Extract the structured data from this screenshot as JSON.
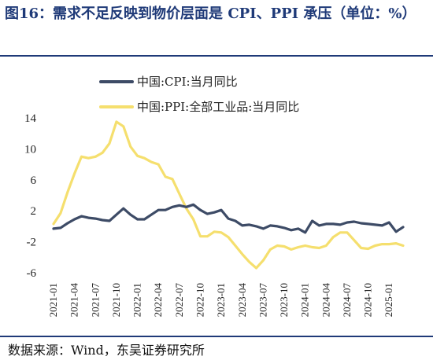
{
  "title": "图16：需求不足反映到物价层面是 CPI、PPI 承压（单位：%）",
  "source": "数据来源：Wind，东吴证券研究所",
  "colors": {
    "cpi": "#3d4b66",
    "ppi": "#f5df6e",
    "title": "#1f3a78"
  },
  "chart_data": {
    "type": "line",
    "title": "图16：需求不足反映到物价层面是 CPI、PPI 承压（单位：%）",
    "xlabel": "",
    "ylabel": "",
    "ylim": [
      -6,
      14
    ],
    "yticks": [
      -6,
      -2,
      2,
      6,
      10,
      14
    ],
    "grid": false,
    "legend_position": "top-center",
    "x": [
      "2021-01",
      "2021-02",
      "2021-03",
      "2021-04",
      "2021-05",
      "2021-06",
      "2021-07",
      "2021-08",
      "2021-09",
      "2021-10",
      "2021-11",
      "2021-12",
      "2022-01",
      "2022-02",
      "2022-03",
      "2022-04",
      "2022-05",
      "2022-06",
      "2022-07",
      "2022-08",
      "2022-09",
      "2022-10",
      "2022-11",
      "2022-12",
      "2023-01",
      "2023-02",
      "2023-03",
      "2023-04",
      "2023-05",
      "2023-06",
      "2023-07",
      "2023-08",
      "2023-09",
      "2023-10",
      "2023-11",
      "2023-12",
      "2024-01",
      "2024-02",
      "2024-03",
      "2024-04",
      "2024-05",
      "2024-06",
      "2024-07",
      "2024-08",
      "2024-09",
      "2024-10",
      "2024-11",
      "2024-12",
      "2025-01",
      "2025-02",
      "2025-03"
    ],
    "xtick_labels": [
      "2021-01",
      "2021-04",
      "2021-07",
      "2021-10",
      "2022-01",
      "2022-04",
      "2022-07",
      "2022-10",
      "2023-01",
      "2023-04",
      "2023-07",
      "2023-10",
      "2024-01",
      "2024-04",
      "2024-07",
      "2024-10",
      "2025-01"
    ],
    "series": [
      {
        "name": "中国:CPI:当月同比",
        "values": [
          -0.3,
          -0.2,
          0.4,
          0.9,
          1.3,
          1.1,
          1.0,
          0.8,
          0.7,
          1.5,
          2.3,
          1.5,
          0.9,
          0.9,
          1.5,
          2.1,
          2.1,
          2.5,
          2.7,
          2.5,
          2.8,
          2.1,
          1.6,
          1.8,
          2.1,
          1.0,
          0.7,
          0.1,
          0.2,
          0.0,
          -0.3,
          0.1,
          0.0,
          -0.2,
          -0.5,
          -0.3,
          -0.8,
          0.7,
          0.1,
          0.3,
          0.3,
          0.2,
          0.5,
          0.6,
          0.4,
          0.3,
          0.2,
          0.1,
          0.5,
          -0.7,
          -0.1
        ]
      },
      {
        "name": "中国:PPI:全部工业品:当月同比",
        "values": [
          0.3,
          1.7,
          4.4,
          6.8,
          9.0,
          8.8,
          9.0,
          9.5,
          10.7,
          13.5,
          12.9,
          10.3,
          9.1,
          8.8,
          8.3,
          8.0,
          6.4,
          6.1,
          4.2,
          2.3,
          0.9,
          -1.3,
          -1.3,
          -0.7,
          -0.8,
          -1.4,
          -2.5,
          -3.6,
          -4.6,
          -5.4,
          -4.4,
          -3.0,
          -2.5,
          -2.6,
          -3.0,
          -2.7,
          -2.5,
          -2.7,
          -2.8,
          -2.5,
          -1.4,
          -0.8,
          -0.8,
          -1.8,
          -2.8,
          -2.9,
          -2.5,
          -2.3,
          -2.3,
          -2.2,
          -2.5
        ]
      }
    ]
  }
}
